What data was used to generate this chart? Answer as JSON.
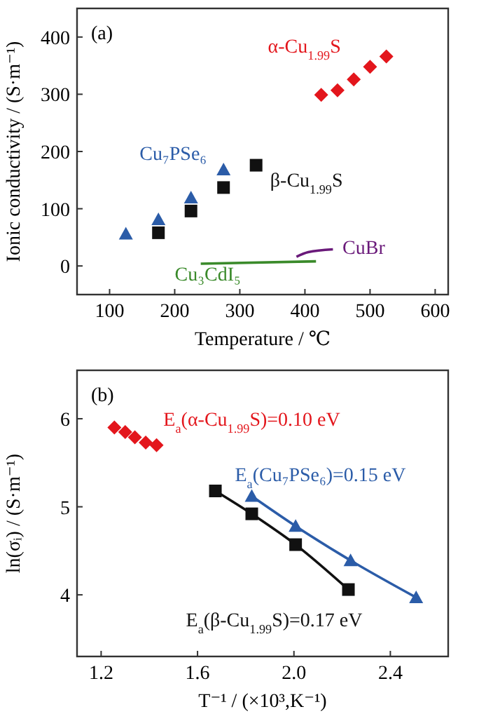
{
  "chart_data": [
    {
      "type": "scatter",
      "title": "(a)",
      "xlabel": "Temperature / ℃",
      "ylabel": "Ionic conductivity / (S·m⁻¹)",
      "xlim": [
        50,
        620
      ],
      "ylim": [
        -50,
        450
      ],
      "xticks": [
        100,
        200,
        300,
        400,
        500,
        600
      ],
      "yticks": [
        0,
        100,
        200,
        300,
        400
      ],
      "grid": false,
      "series": [
        {
          "name": "Cu₇PSe₆",
          "color": "#2b5ca8",
          "marker": "triangle",
          "x": [
            125,
            175,
            225,
            275
          ],
          "values": [
            56,
            81,
            119,
            168
          ]
        },
        {
          "name": "β-Cu$_{1.99}$S",
          "color": "#111111",
          "marker": "square",
          "x": [
            175,
            225,
            275,
            325
          ],
          "values": [
            58,
            96,
            137,
            176
          ]
        },
        {
          "name": "α-Cu$_{1.99}$S",
          "color": "#e3161c",
          "marker": "diamond",
          "x": [
            425,
            450,
            475,
            500,
            525
          ],
          "values": [
            299,
            307,
            326,
            348,
            366
          ]
        },
        {
          "name": "Cu₃CdI₅",
          "type": "line",
          "color": "#3a8a2a",
          "marker": "none",
          "x": [
            240,
            417
          ],
          "values": [
            4,
            8
          ]
        },
        {
          "name": "CuBr",
          "type": "line",
          "color": "#6a1a7a",
          "marker": "none",
          "x": [
            387,
            405,
            443
          ],
          "values": [
            16,
            24,
            29
          ]
        }
      ]
    },
    {
      "type": "scatter",
      "title": "(b)",
      "xlabel": "T⁻¹ / (×10³,K⁻¹)",
      "ylabel": "ln(σᵢ) / (S·m⁻¹)",
      "xlim": [
        1.1,
        2.64
      ],
      "ylim": [
        3.3,
        6.55
      ],
      "xticks": [
        {
          "value": 1.2,
          "label": "1.2"
        },
        {
          "value": 1.6,
          "label": "1.6"
        },
        {
          "value": 2.0,
          "label": "2.0"
        },
        {
          "value": 2.4,
          "label": "2.4"
        }
      ],
      "yticks": [
        4,
        5,
        6
      ],
      "grid": false,
      "series": [
        {
          "name": "E$_{a}$(α-Cu$_{1.99}$S)=0.10 eV",
          "color": "#e3161c",
          "marker": "diamond",
          "x": [
            1.255,
            1.3,
            1.34,
            1.385,
            1.43
          ],
          "values": [
            5.9,
            5.85,
            5.79,
            5.73,
            5.7
          ]
        },
        {
          "name": "E$_{a}$(β-Cu$_{1.99}$S)=0.17 eV",
          "type": "line",
          "color": "#111111",
          "marker": "square",
          "x": [
            1.674,
            1.825,
            2.007,
            2.226
          ],
          "values": [
            5.18,
            4.92,
            4.57,
            4.06
          ]
        },
        {
          "name": "E$_{a}$(Cu₇PSe₆)=0.15 eV",
          "type": "line",
          "color": "#2b5ca8",
          "marker": "triangle",
          "x": [
            1.825,
            2.007,
            2.235,
            2.507
          ],
          "values": [
            5.12,
            4.78,
            4.39,
            3.97
          ]
        }
      ]
    }
  ]
}
